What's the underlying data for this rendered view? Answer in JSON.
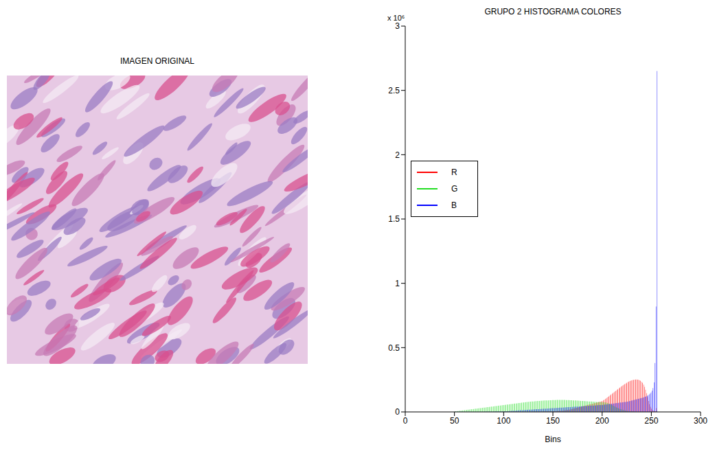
{
  "image": {
    "title": "IMAGEN ORIGINAL"
  },
  "chart_data": {
    "type": "histogram",
    "title": "GRUPO 2 HISTOGRAMA COLORES",
    "xlabel": "Bins",
    "y_scale_label": "x 10⁶",
    "bins": [
      50,
      51,
      52,
      53,
      54,
      55,
      56,
      57,
      58,
      59,
      60,
      61,
      62,
      63,
      64,
      65,
      66,
      67,
      68,
      69,
      70,
      71,
      72,
      73,
      74,
      75,
      76,
      77,
      78,
      79,
      80,
      81,
      82,
      83,
      84,
      85,
      86,
      87,
      88,
      89,
      90,
      91,
      92,
      93,
      94,
      95,
      96,
      97,
      98,
      99,
      100,
      101,
      102,
      103,
      104,
      105,
      106,
      107,
      108,
      109,
      110,
      111,
      112,
      113,
      114,
      115,
      116,
      117,
      118,
      119,
      120,
      121,
      122,
      123,
      124,
      125,
      126,
      127,
      128,
      129,
      130,
      131,
      132,
      133,
      134,
      135,
      136,
      137,
      138,
      139,
      140,
      141,
      142,
      143,
      144,
      145,
      146,
      147,
      148,
      149,
      150,
      151,
      152,
      153,
      154,
      155,
      156,
      157,
      158,
      159,
      160,
      161,
      162,
      163,
      164,
      165,
      166,
      167,
      168,
      169,
      170,
      171,
      172,
      173,
      174,
      175,
      176,
      177,
      178,
      179,
      180,
      181,
      182,
      183,
      184,
      185,
      186,
      187,
      188,
      189,
      190,
      191,
      192,
      193,
      194,
      195,
      196,
      197,
      198,
      199,
      200,
      201,
      202,
      203,
      204,
      205,
      206,
      207,
      208,
      209,
      210,
      211,
      212,
      213,
      214,
      215,
      216,
      217,
      218,
      219,
      220,
      221,
      222,
      223,
      224,
      225,
      226,
      227,
      228,
      229,
      230,
      231,
      232,
      233,
      234,
      235,
      236,
      237,
      238,
      239,
      240,
      241,
      242,
      243,
      244,
      245,
      246,
      247,
      248,
      249,
      250,
      251,
      252,
      253,
      254,
      255,
      256
    ],
    "series": [
      {
        "name": "R",
        "color": "#ff0000",
        "values": [
          0,
          0,
          0,
          0,
          0,
          0,
          0,
          0,
          0,
          0,
          0,
          0,
          0,
          0,
          0,
          0,
          0,
          0,
          0,
          0,
          0,
          0,
          0,
          0,
          0,
          0,
          0,
          0,
          0,
          0,
          0,
          0,
          0,
          0,
          0,
          0,
          0,
          0,
          0,
          0,
          0,
          0,
          0,
          0,
          0,
          0,
          0,
          0,
          0,
          0,
          0.001,
          0.001,
          0.001,
          0.001,
          0.001,
          0.001,
          0.001,
          0.001,
          0.001,
          0.001,
          0.001,
          0.001,
          0.001,
          0.001,
          0.001,
          0.001,
          0.001,
          0.001,
          0.001,
          0.001,
          0.002,
          0.002,
          0.002,
          0.002,
          0.002,
          0.002,
          0.002,
          0.002,
          0.002,
          0.002,
          0.003,
          0.003,
          0.003,
          0.003,
          0.003,
          0.003,
          0.003,
          0.003,
          0.003,
          0.003,
          0.004,
          0.004,
          0.004,
          0.004,
          0.004,
          0.004,
          0.004,
          0.004,
          0.004,
          0.004,
          0.005,
          0.005,
          0.006,
          0.006,
          0.007,
          0.007,
          0.008,
          0.008,
          0.009,
          0.01,
          0.011,
          0.012,
          0.013,
          0.014,
          0.015,
          0.016,
          0.017,
          0.018,
          0.02,
          0.022,
          0.024,
          0.026,
          0.028,
          0.03,
          0.032,
          0.034,
          0.036,
          0.038,
          0.04,
          0.042,
          0.044,
          0.046,
          0.048,
          0.05,
          0.052,
          0.054,
          0.056,
          0.058,
          0.06,
          0.062,
          0.064,
          0.066,
          0.068,
          0.07,
          0.072,
          0.074,
          0.076,
          0.078,
          0.08,
          0.082,
          0.085,
          0.09,
          0.095,
          0.1,
          0.106,
          0.112,
          0.118,
          0.124,
          0.13,
          0.136,
          0.142,
          0.148,
          0.154,
          0.16,
          0.166,
          0.172,
          0.178,
          0.184,
          0.19,
          0.196,
          0.202,
          0.207,
          0.212,
          0.217,
          0.222,
          0.227,
          0.232,
          0.236,
          0.24,
          0.243,
          0.246,
          0.248,
          0.25,
          0.251,
          0.252,
          0.252,
          0.251,
          0.249,
          0.246,
          0.241,
          0.234,
          0.225,
          0.212,
          0.195,
          0.172,
          0.145,
          0.115,
          0.085,
          0.06,
          0.04,
          0.025,
          0.015,
          0.01,
          0.008,
          0.006,
          0.03
        ]
      },
      {
        "name": "G",
        "color": "#22dd22",
        "values": [
          0.004,
          0.005,
          0.006,
          0.007,
          0.008,
          0.009,
          0.01,
          0.011,
          0.012,
          0.013,
          0.014,
          0.015,
          0.016,
          0.017,
          0.018,
          0.019,
          0.02,
          0.021,
          0.022,
          0.023,
          0.024,
          0.025,
          0.026,
          0.027,
          0.028,
          0.029,
          0.03,
          0.031,
          0.032,
          0.033,
          0.034,
          0.035,
          0.036,
          0.037,
          0.038,
          0.039,
          0.04,
          0.041,
          0.042,
          0.043,
          0.044,
          0.045,
          0.046,
          0.047,
          0.048,
          0.049,
          0.05,
          0.051,
          0.052,
          0.053,
          0.054,
          0.055,
          0.056,
          0.057,
          0.058,
          0.059,
          0.06,
          0.061,
          0.062,
          0.063,
          0.064,
          0.065,
          0.066,
          0.067,
          0.068,
          0.069,
          0.07,
          0.071,
          0.072,
          0.073,
          0.074,
          0.075,
          0.076,
          0.077,
          0.078,
          0.079,
          0.08,
          0.08,
          0.081,
          0.082,
          0.082,
          0.083,
          0.084,
          0.084,
          0.085,
          0.086,
          0.086,
          0.087,
          0.087,
          0.088,
          0.088,
          0.089,
          0.089,
          0.09,
          0.09,
          0.09,
          0.091,
          0.091,
          0.091,
          0.092,
          0.092,
          0.092,
          0.092,
          0.093,
          0.093,
          0.093,
          0.093,
          0.093,
          0.093,
          0.093,
          0.093,
          0.093,
          0.093,
          0.092,
          0.092,
          0.092,
          0.092,
          0.091,
          0.091,
          0.091,
          0.09,
          0.09,
          0.089,
          0.089,
          0.088,
          0.088,
          0.087,
          0.087,
          0.086,
          0.086,
          0.085,
          0.085,
          0.084,
          0.084,
          0.083,
          0.083,
          0.082,
          0.082,
          0.081,
          0.081,
          0.08,
          0.08,
          0.079,
          0.079,
          0.078,
          0.078,
          0.078,
          0.077,
          0.077,
          0.077,
          0.076,
          0.076,
          0.075,
          0.074,
          0.072,
          0.07,
          0.067,
          0.064,
          0.06,
          0.056,
          0.052,
          0.048,
          0.044,
          0.04,
          0.036,
          0.032,
          0.029,
          0.026,
          0.023,
          0.02,
          0.018,
          0.016,
          0.014,
          0.012,
          0.01,
          0.009,
          0.008,
          0.007,
          0.006,
          0.005,
          0.005,
          0.004,
          0.004,
          0.003,
          0.003,
          0.003,
          0.002,
          0.002,
          0.002,
          0.002,
          0.001,
          0.001,
          0.001,
          0.001,
          0.001,
          0.001,
          0.001,
          0.001,
          0.001,
          0.001,
          0.001,
          0.001,
          0.001,
          0.001,
          0.002,
          0.01
        ]
      },
      {
        "name": "B",
        "color": "#0000ff",
        "values": [
          0.001,
          0.001,
          0.001,
          0.001,
          0.001,
          0.001,
          0.001,
          0.001,
          0.001,
          0.001,
          0.002,
          0.002,
          0.002,
          0.002,
          0.002,
          0.002,
          0.002,
          0.002,
          0.002,
          0.002,
          0.002,
          0.002,
          0.002,
          0.002,
          0.002,
          0.002,
          0.002,
          0.002,
          0.002,
          0.002,
          0.003,
          0.003,
          0.003,
          0.003,
          0.003,
          0.003,
          0.003,
          0.003,
          0.003,
          0.003,
          0.004,
          0.004,
          0.004,
          0.004,
          0.004,
          0.004,
          0.004,
          0.004,
          0.004,
          0.004,
          0.005,
          0.005,
          0.006,
          0.006,
          0.007,
          0.007,
          0.008,
          0.008,
          0.009,
          0.009,
          0.01,
          0.01,
          0.011,
          0.011,
          0.012,
          0.012,
          0.013,
          0.013,
          0.014,
          0.014,
          0.015,
          0.015,
          0.016,
          0.016,
          0.017,
          0.017,
          0.018,
          0.018,
          0.019,
          0.019,
          0.02,
          0.02,
          0.021,
          0.021,
          0.022,
          0.022,
          0.023,
          0.023,
          0.024,
          0.024,
          0.025,
          0.025,
          0.026,
          0.026,
          0.027,
          0.027,
          0.028,
          0.028,
          0.029,
          0.029,
          0.03,
          0.03,
          0.031,
          0.031,
          0.032,
          0.032,
          0.033,
          0.033,
          0.034,
          0.034,
          0.035,
          0.035,
          0.036,
          0.036,
          0.037,
          0.037,
          0.038,
          0.038,
          0.039,
          0.039,
          0.04,
          0.04,
          0.041,
          0.041,
          0.042,
          0.042,
          0.043,
          0.043,
          0.044,
          0.044,
          0.045,
          0.045,
          0.046,
          0.046,
          0.047,
          0.047,
          0.048,
          0.048,
          0.049,
          0.049,
          0.05,
          0.05,
          0.051,
          0.051,
          0.052,
          0.052,
          0.053,
          0.053,
          0.054,
          0.054,
          0.055,
          0.056,
          0.057,
          0.058,
          0.059,
          0.06,
          0.061,
          0.062,
          0.063,
          0.064,
          0.065,
          0.066,
          0.067,
          0.068,
          0.069,
          0.07,
          0.071,
          0.072,
          0.073,
          0.074,
          0.075,
          0.076,
          0.077,
          0.078,
          0.079,
          0.08,
          0.082,
          0.084,
          0.086,
          0.088,
          0.09,
          0.092,
          0.094,
          0.096,
          0.098,
          0.1,
          0.102,
          0.104,
          0.106,
          0.108,
          0.11,
          0.112,
          0.115,
          0.118,
          0.121,
          0.125,
          0.13,
          0.136,
          0.143,
          0.152,
          0.165,
          0.185,
          0.23,
          0.38,
          0.82,
          2.65
        ]
      }
    ],
    "xlim": [
      0,
      300
    ],
    "xticks": [
      0,
      50,
      100,
      150,
      200,
      250,
      300
    ],
    "ylim": [
      0,
      3
    ],
    "yticks": [
      0,
      0.5,
      1,
      1.5,
      2,
      2.5,
      3
    ],
    "grid": false,
    "legend": "left"
  }
}
